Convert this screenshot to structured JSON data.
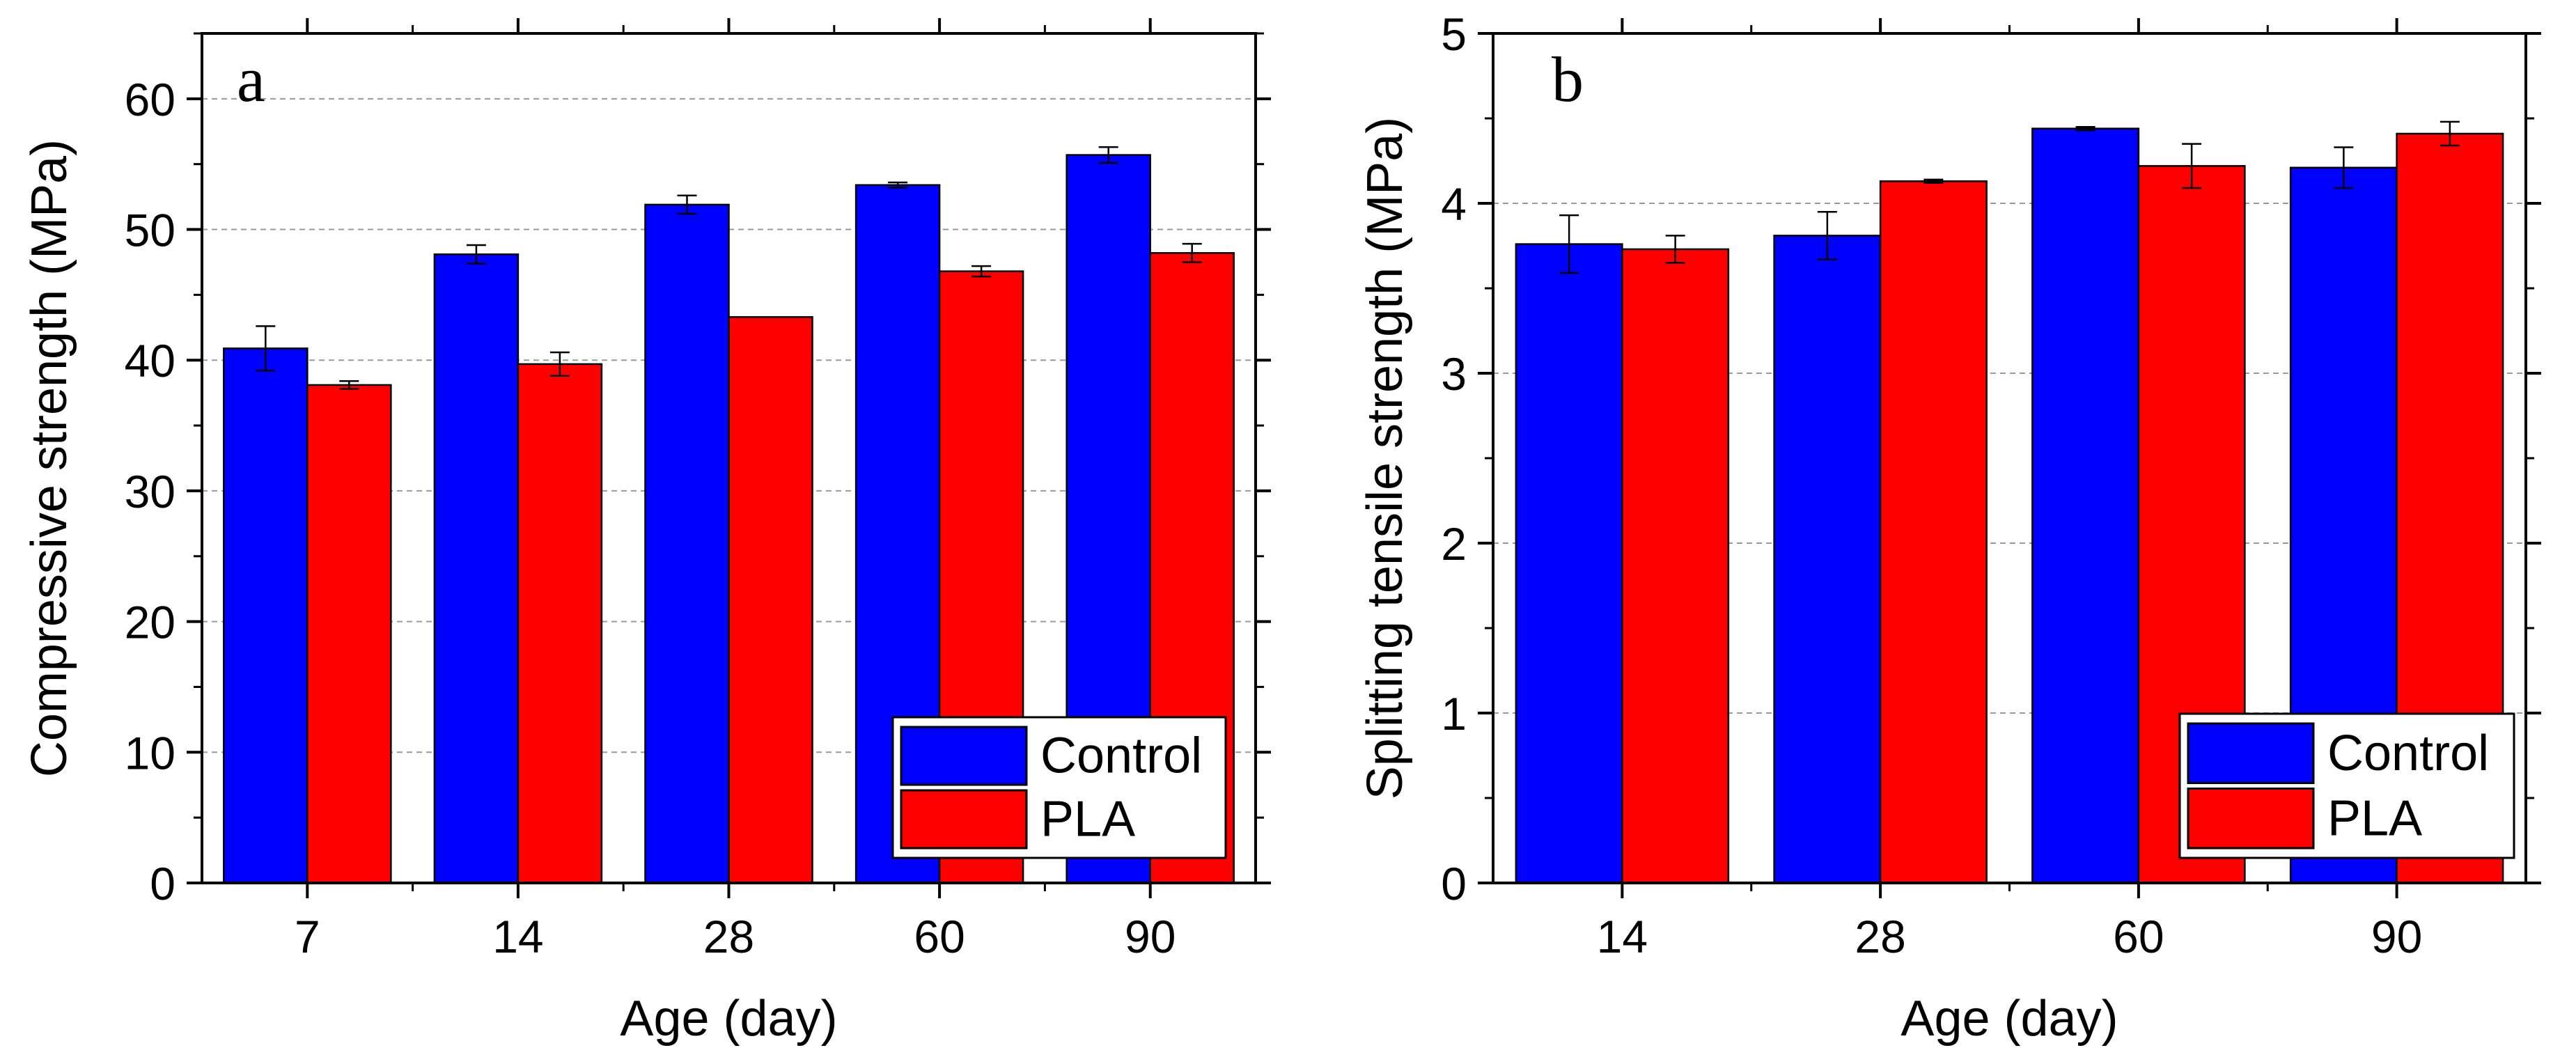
{
  "chart_data": [
    {
      "type": "bar",
      "panel_label": "a",
      "title": "",
      "xlabel": "Age (day)",
      "ylabel": "Compressive strength (MPa)",
      "categories": [
        "7",
        "14",
        "28",
        "60",
        "90"
      ],
      "ylim": [
        0,
        65
      ],
      "yticks": [
        0,
        10,
        20,
        30,
        40,
        50,
        60
      ],
      "ytick_labels": [
        "0",
        "10",
        "20",
        "30",
        "40",
        "50",
        "60"
      ],
      "grid": true,
      "legend_position": "bottom-right",
      "series": [
        {
          "name": "Control",
          "color": "#0000ff",
          "values": [
            40.9,
            48.1,
            51.9,
            53.4,
            55.7
          ],
          "errors": [
            1.7,
            0.7,
            0.7,
            0.2,
            0.6
          ]
        },
        {
          "name": "PLA",
          "color": "#ff0000",
          "values": [
            38.1,
            39.7,
            43.3,
            46.8,
            48.2
          ],
          "errors": [
            0.3,
            0.9,
            0.0,
            0.4,
            0.7
          ]
        }
      ]
    },
    {
      "type": "bar",
      "panel_label": "b",
      "title": "",
      "xlabel": "Age (day)",
      "ylabel": "Splitting tensile strength (MPa)",
      "categories": [
        "14",
        "28",
        "60",
        "90"
      ],
      "ylim": [
        0,
        5
      ],
      "yticks": [
        0,
        1,
        2,
        3,
        4,
        5
      ],
      "ytick_labels": [
        "0",
        "1",
        "2",
        "3",
        "4",
        "5"
      ],
      "grid": true,
      "legend_position": "bottom-right",
      "series": [
        {
          "name": "Control",
          "color": "#0000ff",
          "values": [
            3.76,
            3.81,
            4.44,
            4.21
          ],
          "errors": [
            0.17,
            0.14,
            0.01,
            0.12
          ]
        },
        {
          "name": "PLA",
          "color": "#ff0000",
          "values": [
            3.73,
            4.13,
            4.22,
            4.41
          ],
          "errors": [
            0.08,
            0.01,
            0.13,
            0.07
          ]
        }
      ]
    }
  ]
}
